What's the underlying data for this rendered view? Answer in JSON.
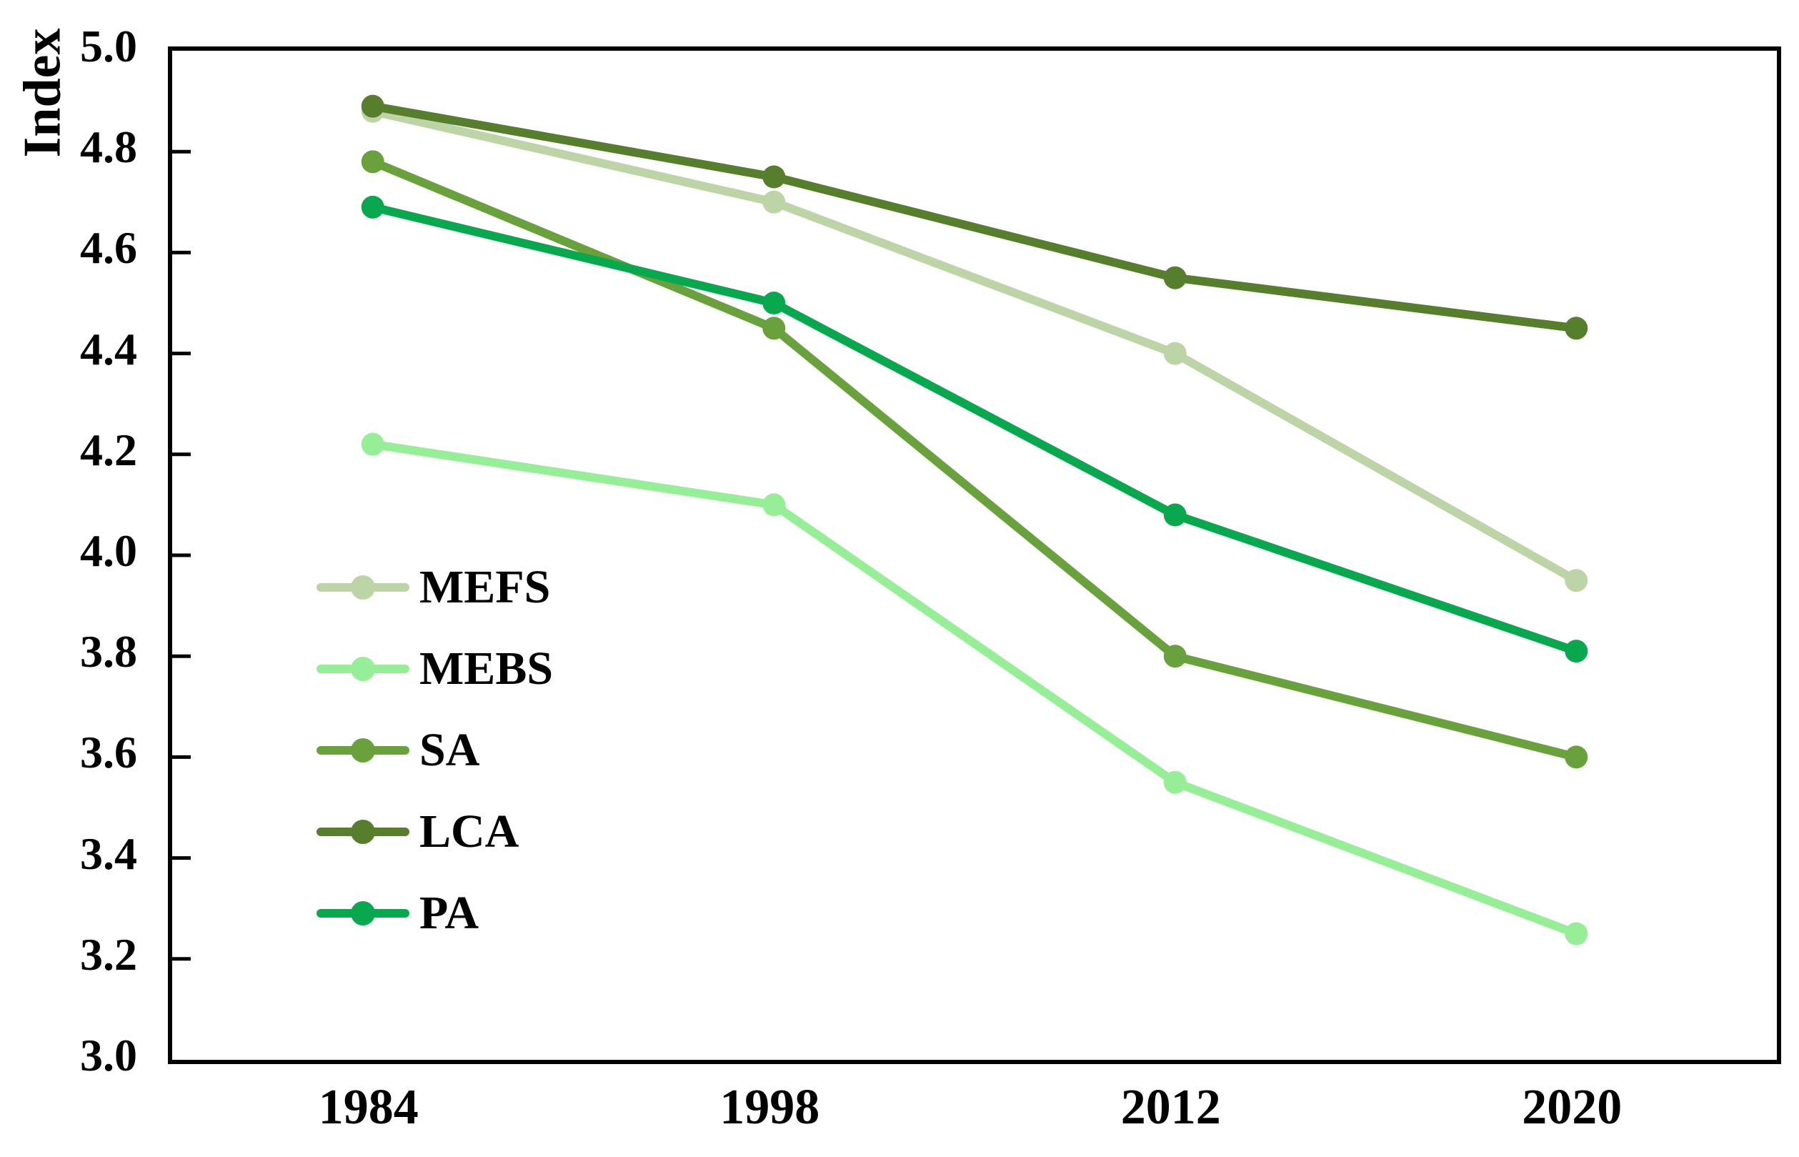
{
  "chart_data": {
    "type": "line",
    "title": "",
    "xlabel": "",
    "ylabel": "Index",
    "categories": [
      "1984",
      "1998",
      "2012",
      "2020"
    ],
    "series": [
      {
        "name": "MEFS",
        "color": "#bdd5a6",
        "values": [
          4.88,
          4.7,
          4.4,
          3.95
        ]
      },
      {
        "name": "MEBS",
        "color": "#96ee96",
        "values": [
          4.22,
          4.1,
          3.55,
          3.25
        ]
      },
      {
        "name": "SA",
        "color": "#69a13c",
        "values": [
          4.78,
          4.45,
          3.8,
          3.6
        ]
      },
      {
        "name": "LCA",
        "color": "#567e2d",
        "values": [
          4.89,
          4.75,
          4.55,
          4.45
        ]
      },
      {
        "name": "PA",
        "color": "#0aa84e",
        "values": [
          4.69,
          4.5,
          4.08,
          3.81
        ]
      }
    ],
    "ylim": [
      3.0,
      5.0
    ],
    "yticks": [
      5.0,
      4.8,
      4.6,
      4.4,
      4.2,
      4.0,
      3.8,
      3.6,
      3.4,
      3.2,
      3.0
    ],
    "ytick_labels": [
      "5.0",
      "4.8",
      "4.6",
      "4.4",
      "4.2",
      "4.0",
      "3.8",
      "3.6",
      "3.4",
      "3.2",
      "3.0"
    ],
    "grid": false,
    "legend_position": "inside-center-left",
    "legend_order": [
      "MEFS",
      "MEBS",
      "SA",
      "LCA",
      "PA"
    ],
    "axis_color": "#000000",
    "marker": "circle"
  }
}
